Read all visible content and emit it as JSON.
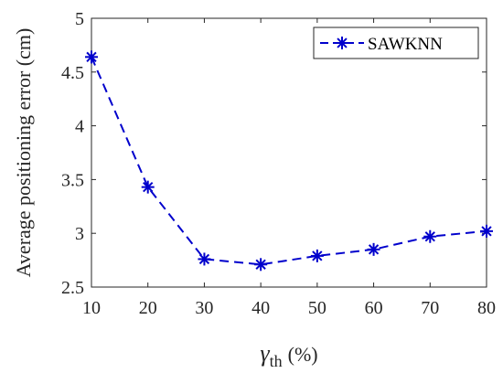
{
  "chart_data": {
    "type": "line",
    "x": [
      10,
      20,
      30,
      40,
      50,
      60,
      70,
      80
    ],
    "series": [
      {
        "name": "SAWKNN",
        "values": [
          4.64,
          3.43,
          2.76,
          2.71,
          2.79,
          2.85,
          2.97,
          3.02
        ],
        "color": "#0000cc",
        "line_style": "dashed",
        "marker": "asterisk"
      }
    ],
    "xlim": [
      10,
      80
    ],
    "ylim": [
      2.5,
      5
    ],
    "x_ticks": [
      "10",
      "20",
      "30",
      "40",
      "50",
      "60",
      "70",
      "80"
    ],
    "y_ticks": [
      "2.5",
      "3",
      "3.5",
      "4",
      "4.5",
      "5"
    ],
    "xlabel": {
      "symbol": "γ",
      "subscript": "th",
      "unit": "(%)"
    },
    "ylabel": "Average  positioning  error  (cm)",
    "grid": false,
    "legend": "top-right"
  }
}
